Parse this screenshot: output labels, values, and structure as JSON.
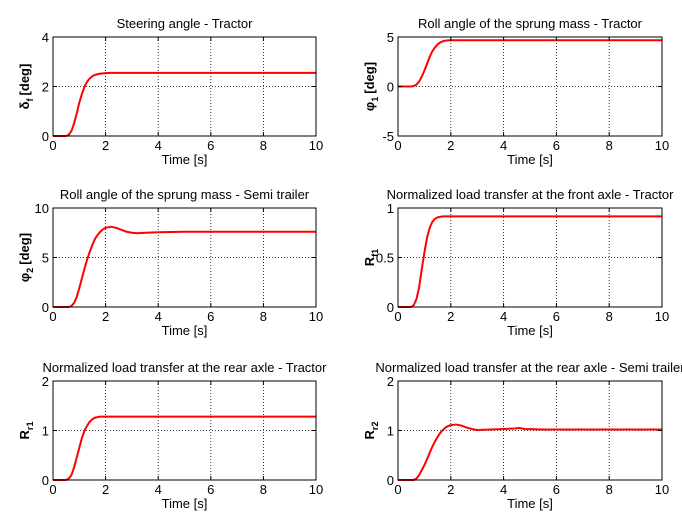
{
  "colors": {
    "line": "#ff0000",
    "grid": "#000000",
    "axes": "#000000",
    "background": "#ffffff"
  },
  "chart_data": [
    {
      "type": "line",
      "title": "Steering angle - Tractor",
      "ylabel": "δ",
      "ylabel_sub": "f",
      "ylabel_unit": "[deg]",
      "xlabel": "Time [s]",
      "xlim": [
        0,
        10
      ],
      "ylim": [
        0,
        4
      ],
      "xticks": [
        0,
        2,
        4,
        6,
        8,
        10
      ],
      "yticks": [
        0,
        2,
        4
      ],
      "grid": "dotted",
      "series": [
        {
          "x": [
            0,
            0.5,
            0.6,
            0.7,
            0.8,
            0.9,
            1.0,
            1.1,
            1.2,
            1.3,
            1.4,
            1.5,
            1.6,
            1.7,
            1.8,
            1.9,
            2.0,
            2.2,
            2.5,
            3.0,
            10
          ],
          "y": [
            0,
            0,
            0.05,
            0.2,
            0.5,
            0.9,
            1.35,
            1.7,
            2.0,
            2.2,
            2.33,
            2.42,
            2.47,
            2.5,
            2.52,
            2.53,
            2.54,
            2.55,
            2.55,
            2.55,
            2.55
          ]
        }
      ]
    },
    {
      "type": "line",
      "title": "Roll angle of the sprung mass - Tractor",
      "ylabel": "φ",
      "ylabel_sub": "1",
      "ylabel_unit": "[deg]",
      "xlabel": "Time [s]",
      "xlim": [
        0,
        10
      ],
      "ylim": [
        -5,
        5
      ],
      "xticks": [
        0,
        2,
        4,
        6,
        8,
        10
      ],
      "yticks": [
        -5,
        0,
        5
      ],
      "grid": "dotted",
      "series": [
        {
          "x": [
            0,
            0.5,
            0.6,
            0.7,
            0.8,
            0.9,
            1.0,
            1.1,
            1.2,
            1.3,
            1.4,
            1.5,
            1.6,
            1.7,
            1.8,
            1.9,
            2.0,
            2.3,
            3.0,
            10
          ],
          "y": [
            0,
            0,
            0.05,
            0.2,
            0.5,
            1.0,
            1.6,
            2.3,
            3.0,
            3.55,
            3.95,
            4.25,
            4.45,
            4.57,
            4.63,
            4.66,
            4.67,
            4.67,
            4.67,
            4.67
          ]
        }
      ]
    },
    {
      "type": "line",
      "title": "Roll angle of the sprung mass - Semi trailer",
      "ylabel": "φ",
      "ylabel_sub": "2",
      "ylabel_unit": "[deg]",
      "xlabel": "Time [s]",
      "xlim": [
        0,
        10
      ],
      "ylim": [
        0,
        10
      ],
      "xticks": [
        0,
        2,
        4,
        6,
        8,
        10
      ],
      "yticks": [
        0,
        5,
        10
      ],
      "grid": "dotted",
      "series": [
        {
          "x": [
            0,
            0.6,
            0.7,
            0.8,
            0.9,
            1.0,
            1.1,
            1.2,
            1.3,
            1.4,
            1.5,
            1.6,
            1.7,
            1.8,
            1.9,
            2.0,
            2.2,
            2.4,
            2.6,
            2.8,
            3.0,
            3.2,
            3.5,
            4.0,
            5.0,
            10
          ],
          "y": [
            0,
            0,
            0.1,
            0.4,
            1.0,
            1.9,
            2.9,
            3.9,
            4.8,
            5.6,
            6.3,
            6.9,
            7.3,
            7.6,
            7.85,
            8.0,
            8.1,
            8.0,
            7.8,
            7.6,
            7.5,
            7.45,
            7.5,
            7.55,
            7.6,
            7.6
          ]
        }
      ]
    },
    {
      "type": "line",
      "title": "Normalized load transfer at the front axle - Tractor",
      "ylabel": "R",
      "ylabel_sub": "f1",
      "ylabel_unit": "",
      "xlabel": "Time [s]",
      "xlim": [
        0,
        10
      ],
      "ylim": [
        0,
        1
      ],
      "xticks": [
        0,
        2,
        4,
        6,
        8,
        10
      ],
      "yticks": [
        0,
        0.5,
        1
      ],
      "grid": "dotted",
      "series": [
        {
          "x": [
            0,
            0.5,
            0.6,
            0.7,
            0.8,
            0.9,
            1.0,
            1.1,
            1.2,
            1.3,
            1.4,
            1.5,
            1.6,
            1.7,
            2.0,
            3.0,
            10
          ],
          "y": [
            0,
            0,
            0.02,
            0.08,
            0.2,
            0.38,
            0.55,
            0.7,
            0.8,
            0.86,
            0.89,
            0.905,
            0.91,
            0.915,
            0.915,
            0.915,
            0.915
          ]
        }
      ]
    },
    {
      "type": "line",
      "title": "Normalized load transfer at the rear axle - Tractor",
      "ylabel": "R",
      "ylabel_sub": "r1",
      "ylabel_unit": "",
      "xlabel": "Time [s]",
      "xlim": [
        0,
        10
      ],
      "ylim": [
        0,
        2
      ],
      "xticks": [
        0,
        2,
        4,
        6,
        8,
        10
      ],
      "yticks": [
        0,
        1,
        2
      ],
      "grid": "dotted",
      "series": [
        {
          "x": [
            0,
            0.5,
            0.6,
            0.7,
            0.8,
            0.9,
            1.0,
            1.1,
            1.2,
            1.3,
            1.4,
            1.5,
            1.6,
            1.7,
            1.8,
            2.0,
            3.0,
            10
          ],
          "y": [
            0,
            0,
            0.03,
            0.1,
            0.25,
            0.45,
            0.65,
            0.85,
            1.0,
            1.1,
            1.18,
            1.23,
            1.26,
            1.27,
            1.28,
            1.28,
            1.28,
            1.28
          ]
        }
      ]
    },
    {
      "type": "line",
      "title": "Normalized load transfer at the rear axle - Semi trailer",
      "ylabel": "R",
      "ylabel_sub": "r2",
      "ylabel_unit": "",
      "xlabel": "Time [s]",
      "xlim": [
        0,
        10
      ],
      "ylim": [
        0,
        2
      ],
      "xticks": [
        0,
        2,
        4,
        6,
        8,
        10
      ],
      "yticks": [
        0,
        1,
        2
      ],
      "grid": "dotted",
      "series": [
        {
          "x": [
            0,
            0.6,
            0.7,
            0.8,
            0.9,
            1.0,
            1.1,
            1.2,
            1.3,
            1.4,
            1.5,
            1.6,
            1.7,
            1.8,
            1.9,
            2.0,
            2.2,
            2.4,
            2.6,
            2.8,
            3.0,
            3.5,
            4.0,
            4.4,
            4.6,
            4.8,
            5.5,
            10
          ],
          "y": [
            0,
            0,
            0.03,
            0.1,
            0.2,
            0.3,
            0.42,
            0.55,
            0.67,
            0.78,
            0.87,
            0.95,
            1.01,
            1.06,
            1.09,
            1.11,
            1.12,
            1.1,
            1.06,
            1.03,
            1.01,
            1.02,
            1.03,
            1.04,
            1.05,
            1.03,
            1.02,
            1.02
          ]
        }
      ]
    }
  ]
}
